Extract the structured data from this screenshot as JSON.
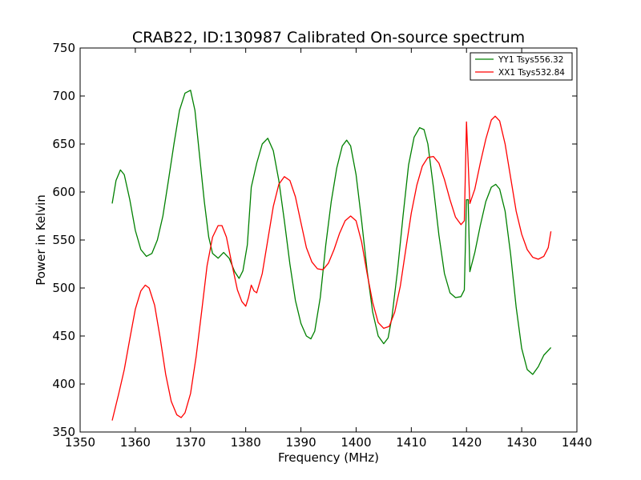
{
  "chart_data": {
    "type": "line",
    "title": "CRAB22, ID:130987 Calibrated On-source spectrum",
    "xlabel": "Frequency (MHz)",
    "ylabel": "Power in Kelvin",
    "xlim": [
      1350,
      1440
    ],
    "ylim": [
      350,
      750
    ],
    "xticks": [
      1350,
      1360,
      1370,
      1380,
      1390,
      1400,
      1410,
      1420,
      1430,
      1440
    ],
    "yticks": [
      350,
      400,
      450,
      500,
      550,
      600,
      650,
      700,
      750
    ],
    "grid": false,
    "legend_position": "top-right",
    "series": [
      {
        "name": "YY1 Tsys556.32",
        "color": "#008000",
        "points": [
          [
            1355.8,
            588
          ],
          [
            1356.5,
            612
          ],
          [
            1357.3,
            623
          ],
          [
            1358.0,
            618
          ],
          [
            1359.0,
            592
          ],
          [
            1360.0,
            560
          ],
          [
            1361.0,
            540
          ],
          [
            1362.0,
            533
          ],
          [
            1363.0,
            536
          ],
          [
            1364.0,
            550
          ],
          [
            1365.0,
            575
          ],
          [
            1366.0,
            612
          ],
          [
            1367.0,
            650
          ],
          [
            1368.0,
            685
          ],
          [
            1369.0,
            703
          ],
          [
            1370.0,
            706
          ],
          [
            1370.8,
            685
          ],
          [
            1371.6,
            640
          ],
          [
            1372.5,
            590
          ],
          [
            1373.3,
            553
          ],
          [
            1374.0,
            536
          ],
          [
            1375.0,
            531
          ],
          [
            1376.0,
            537
          ],
          [
            1377.0,
            531
          ],
          [
            1378.0,
            517
          ],
          [
            1378.8,
            510
          ],
          [
            1379.5,
            518
          ],
          [
            1380.3,
            545
          ],
          [
            1381.0,
            605
          ],
          [
            1382.0,
            630
          ],
          [
            1383.0,
            650
          ],
          [
            1384.0,
            656
          ],
          [
            1385.0,
            643
          ],
          [
            1386.0,
            612
          ],
          [
            1387.0,
            570
          ],
          [
            1388.0,
            525
          ],
          [
            1389.0,
            487
          ],
          [
            1390.0,
            463
          ],
          [
            1391.0,
            450
          ],
          [
            1391.8,
            447
          ],
          [
            1392.5,
            455
          ],
          [
            1393.5,
            490
          ],
          [
            1394.5,
            545
          ],
          [
            1395.5,
            590
          ],
          [
            1396.5,
            625
          ],
          [
            1397.5,
            648
          ],
          [
            1398.3,
            654
          ],
          [
            1399.0,
            648
          ],
          [
            1400.0,
            618
          ],
          [
            1401.0,
            570
          ],
          [
            1402.0,
            518
          ],
          [
            1403.0,
            475
          ],
          [
            1404.0,
            450
          ],
          [
            1405.0,
            442
          ],
          [
            1405.8,
            448
          ],
          [
            1406.5,
            470
          ],
          [
            1407.5,
            518
          ],
          [
            1408.5,
            575
          ],
          [
            1409.5,
            628
          ],
          [
            1410.5,
            657
          ],
          [
            1411.5,
            667
          ],
          [
            1412.3,
            665
          ],
          [
            1413.0,
            650
          ],
          [
            1414.0,
            605
          ],
          [
            1415.0,
            555
          ],
          [
            1416.0,
            515
          ],
          [
            1417.0,
            495
          ],
          [
            1418.0,
            490
          ],
          [
            1419.0,
            491
          ],
          [
            1419.6,
            498
          ],
          [
            1420.0,
            592
          ],
          [
            1420.3,
            592
          ],
          [
            1420.6,
            517
          ],
          [
            1421.5,
            537
          ],
          [
            1422.5,
            565
          ],
          [
            1423.5,
            590
          ],
          [
            1424.5,
            605
          ],
          [
            1425.3,
            608
          ],
          [
            1426.0,
            603
          ],
          [
            1427.0,
            580
          ],
          [
            1428.0,
            535
          ],
          [
            1429.0,
            480
          ],
          [
            1430.0,
            437
          ],
          [
            1431.0,
            415
          ],
          [
            1432.0,
            410
          ],
          [
            1433.0,
            418
          ],
          [
            1434.0,
            430
          ],
          [
            1435.3,
            438
          ]
        ]
      },
      {
        "name": "XX1 Tsys532.84",
        "color": "#ff0000",
        "points": [
          [
            1355.8,
            362
          ],
          [
            1357.0,
            390
          ],
          [
            1358.0,
            415
          ],
          [
            1359.0,
            447
          ],
          [
            1360.0,
            478
          ],
          [
            1361.0,
            497
          ],
          [
            1361.8,
            503
          ],
          [
            1362.5,
            500
          ],
          [
            1363.5,
            482
          ],
          [
            1364.5,
            448
          ],
          [
            1365.5,
            410
          ],
          [
            1366.5,
            382
          ],
          [
            1367.5,
            368
          ],
          [
            1368.3,
            365
          ],
          [
            1369.0,
            370
          ],
          [
            1370.0,
            390
          ],
          [
            1371.0,
            428
          ],
          [
            1372.0,
            475
          ],
          [
            1373.0,
            523
          ],
          [
            1374.0,
            553
          ],
          [
            1375.0,
            565
          ],
          [
            1375.7,
            565
          ],
          [
            1376.5,
            553
          ],
          [
            1377.5,
            525
          ],
          [
            1378.5,
            498
          ],
          [
            1379.3,
            486
          ],
          [
            1380.0,
            481
          ],
          [
            1380.5,
            490
          ],
          [
            1381.0,
            503
          ],
          [
            1381.5,
            497
          ],
          [
            1382.0,
            495
          ],
          [
            1383.0,
            515
          ],
          [
            1384.0,
            550
          ],
          [
            1385.0,
            585
          ],
          [
            1386.0,
            608
          ],
          [
            1387.0,
            616
          ],
          [
            1388.0,
            612
          ],
          [
            1389.0,
            595
          ],
          [
            1390.0,
            568
          ],
          [
            1391.0,
            542
          ],
          [
            1392.0,
            527
          ],
          [
            1393.0,
            520
          ],
          [
            1394.0,
            519
          ],
          [
            1395.0,
            526
          ],
          [
            1396.0,
            540
          ],
          [
            1397.0,
            557
          ],
          [
            1398.0,
            570
          ],
          [
            1399.0,
            575
          ],
          [
            1400.0,
            570
          ],
          [
            1401.0,
            548
          ],
          [
            1402.0,
            515
          ],
          [
            1403.0,
            485
          ],
          [
            1404.0,
            464
          ],
          [
            1405.0,
            458
          ],
          [
            1406.0,
            460
          ],
          [
            1407.0,
            475
          ],
          [
            1408.0,
            502
          ],
          [
            1409.0,
            540
          ],
          [
            1410.0,
            578
          ],
          [
            1411.0,
            607
          ],
          [
            1412.0,
            627
          ],
          [
            1413.0,
            636
          ],
          [
            1414.0,
            637
          ],
          [
            1415.0,
            630
          ],
          [
            1416.0,
            613
          ],
          [
            1417.0,
            592
          ],
          [
            1418.0,
            574
          ],
          [
            1419.0,
            566
          ],
          [
            1419.6,
            570
          ],
          [
            1420.0,
            673
          ],
          [
            1420.6,
            588
          ],
          [
            1421.5,
            603
          ],
          [
            1422.5,
            630
          ],
          [
            1423.5,
            655
          ],
          [
            1424.5,
            675
          ],
          [
            1425.2,
            679
          ],
          [
            1426.0,
            674
          ],
          [
            1427.0,
            650
          ],
          [
            1428.0,
            615
          ],
          [
            1429.0,
            580
          ],
          [
            1430.0,
            556
          ],
          [
            1431.0,
            540
          ],
          [
            1432.0,
            532
          ],
          [
            1433.0,
            530
          ],
          [
            1434.0,
            533
          ],
          [
            1434.8,
            542
          ],
          [
            1435.3,
            559
          ]
        ]
      }
    ]
  }
}
